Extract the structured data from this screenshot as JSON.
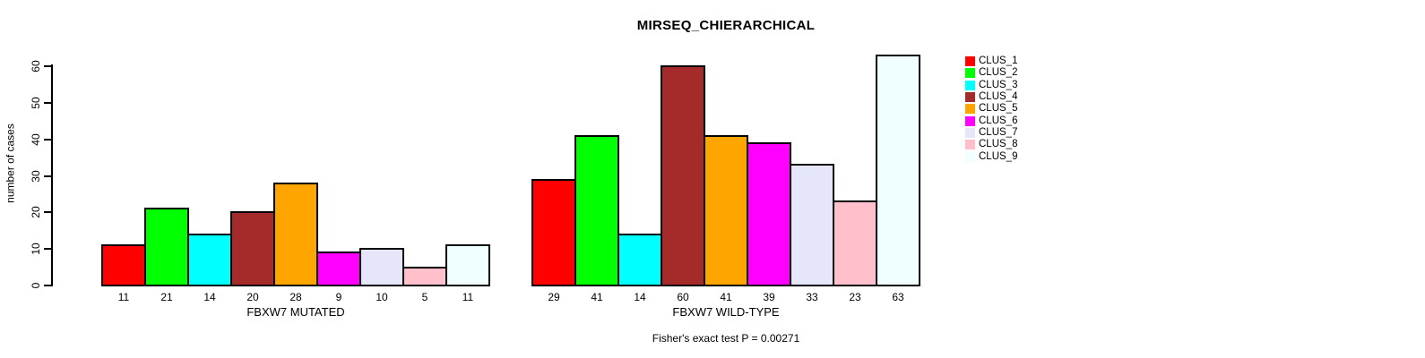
{
  "chart_data": {
    "type": "bar",
    "title": "MIRSEQ_CHIERARCHICAL",
    "ylabel": "number of cases",
    "ylim": [
      0,
      63
    ],
    "yticks": [
      0,
      10,
      20,
      30,
      40,
      50,
      60
    ],
    "grid": false,
    "legend_position": "right",
    "bar_border_color": "#000000",
    "categories": [
      "CLUS_1",
      "CLUS_2",
      "CLUS_3",
      "CLUS_4",
      "CLUS_5",
      "CLUS_6",
      "CLUS_7",
      "CLUS_8",
      "CLUS_9"
    ],
    "colors": [
      "#FF0000",
      "#00FF00",
      "#00FFFF",
      "#A52A2A",
      "#FFA500",
      "#FF00FF",
      "#E6E6FA",
      "#FFC0CB",
      "#F0FFFF"
    ],
    "groups": [
      {
        "xlabel": "FBXW7 MUTATED",
        "values": [
          11,
          21,
          14,
          20,
          28,
          9,
          10,
          5,
          11
        ]
      },
      {
        "xlabel": "FBXW7 WILD-TYPE",
        "values": [
          29,
          41,
          14,
          60,
          41,
          39,
          33,
          23,
          63
        ]
      }
    ],
    "annotation": "Fisher's exact test P = 0.00271",
    "bar_value_labels_shown": true
  }
}
